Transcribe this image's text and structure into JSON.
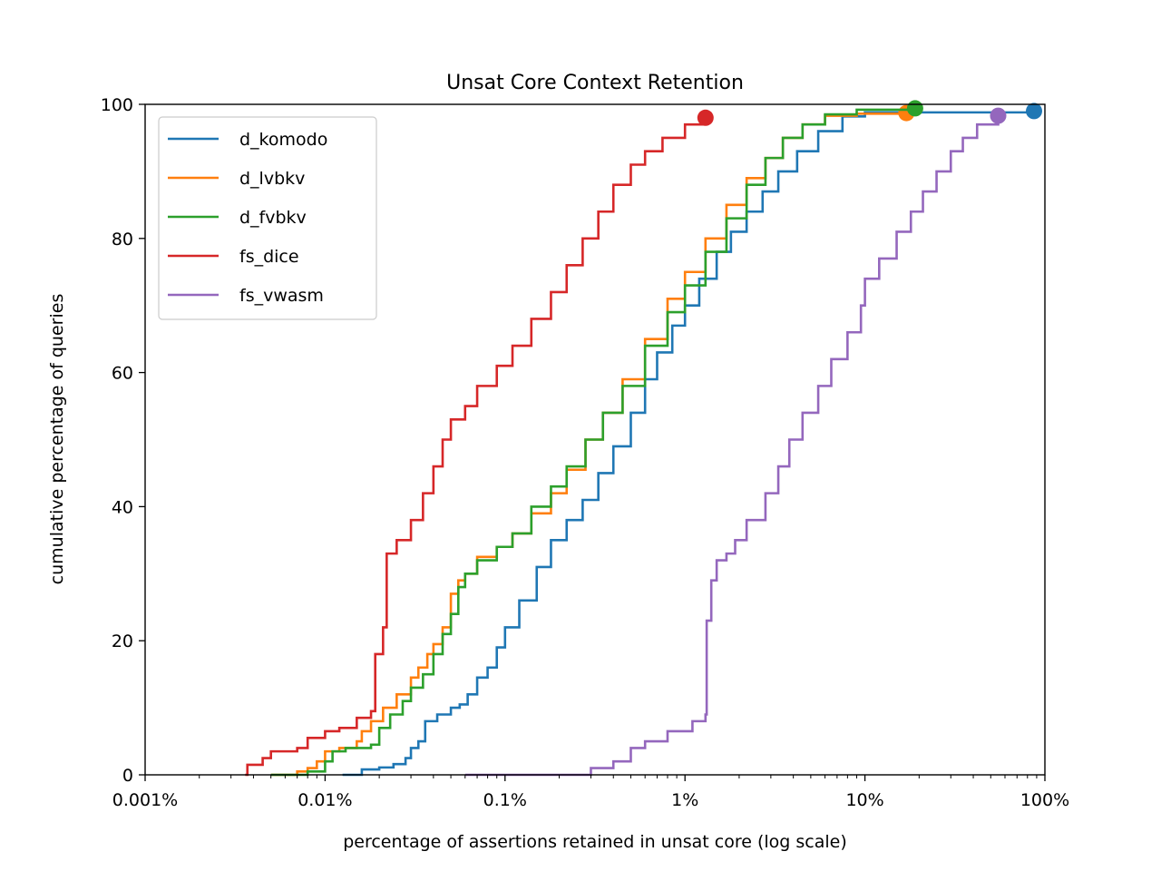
{
  "chart_data": {
    "type": "line",
    "title": "Unsat Core Context Retention",
    "xlabel": "percentage of assertions retained in unsat core (log scale)",
    "ylabel": "cumulative percentage of queries",
    "xscale": "log",
    "xlim": [
      0.001,
      100
    ],
    "ylim": [
      0,
      100
    ],
    "x_ticks": [
      {
        "value": 0.001,
        "label": "0.001%"
      },
      {
        "value": 0.01,
        "label": "0.01%"
      },
      {
        "value": 0.1,
        "label": "0.1%"
      },
      {
        "value": 1,
        "label": "1%"
      },
      {
        "value": 10,
        "label": "10%"
      },
      {
        "value": 100,
        "label": "100%"
      }
    ],
    "y_ticks": [
      0,
      20,
      40,
      60,
      80,
      100
    ],
    "grid": false,
    "legend_position": "top-left",
    "series": [
      {
        "name": "d_komodo",
        "color": "#1f77b4",
        "end_marker": true,
        "points": [
          [
            0.0125,
            0
          ],
          [
            0.016,
            0.8
          ],
          [
            0.02,
            1.1
          ],
          [
            0.024,
            1.6
          ],
          [
            0.028,
            2.5
          ],
          [
            0.03,
            4
          ],
          [
            0.033,
            5
          ],
          [
            0.036,
            8
          ],
          [
            0.042,
            9
          ],
          [
            0.05,
            10
          ],
          [
            0.056,
            10.5
          ],
          [
            0.062,
            12
          ],
          [
            0.07,
            14.5
          ],
          [
            0.08,
            16
          ],
          [
            0.09,
            19
          ],
          [
            0.1,
            22
          ],
          [
            0.12,
            26
          ],
          [
            0.15,
            31
          ],
          [
            0.18,
            35
          ],
          [
            0.22,
            38
          ],
          [
            0.27,
            41
          ],
          [
            0.33,
            45
          ],
          [
            0.4,
            49
          ],
          [
            0.5,
            54
          ],
          [
            0.6,
            59
          ],
          [
            0.7,
            63
          ],
          [
            0.85,
            67
          ],
          [
            1.0,
            70
          ],
          [
            1.2,
            74
          ],
          [
            1.5,
            78
          ],
          [
            1.8,
            81
          ],
          [
            2.2,
            84
          ],
          [
            2.7,
            87
          ],
          [
            3.3,
            90
          ],
          [
            4.2,
            93
          ],
          [
            5.5,
            96
          ],
          [
            7.5,
            98.2
          ],
          [
            10,
            98.8
          ],
          [
            20,
            98.8
          ],
          [
            50,
            98.8
          ],
          [
            87,
            99
          ]
        ]
      },
      {
        "name": "d_lvbkv",
        "color": "#ff7f0e",
        "end_marker": true,
        "points": [
          [
            0.005,
            0
          ],
          [
            0.007,
            0.5
          ],
          [
            0.008,
            1
          ],
          [
            0.009,
            2
          ],
          [
            0.01,
            3.5
          ],
          [
            0.012,
            4
          ],
          [
            0.015,
            5
          ],
          [
            0.016,
            6.5
          ],
          [
            0.018,
            8
          ],
          [
            0.021,
            10
          ],
          [
            0.025,
            12
          ],
          [
            0.03,
            14.5
          ],
          [
            0.033,
            16
          ],
          [
            0.037,
            18
          ],
          [
            0.04,
            19.5
          ],
          [
            0.045,
            22
          ],
          [
            0.05,
            27
          ],
          [
            0.055,
            29
          ],
          [
            0.06,
            30
          ],
          [
            0.07,
            32.5
          ],
          [
            0.09,
            34
          ],
          [
            0.11,
            36
          ],
          [
            0.14,
            39
          ],
          [
            0.18,
            42
          ],
          [
            0.22,
            45.5
          ],
          [
            0.28,
            50
          ],
          [
            0.35,
            54
          ],
          [
            0.45,
            59
          ],
          [
            0.6,
            65
          ],
          [
            0.8,
            71
          ],
          [
            1.0,
            75
          ],
          [
            1.3,
            80
          ],
          [
            1.7,
            85
          ],
          [
            2.2,
            89
          ],
          [
            2.8,
            92
          ],
          [
            3.5,
            95
          ],
          [
            4.5,
            97
          ],
          [
            6,
            98.3
          ],
          [
            9,
            98.6
          ],
          [
            17,
            98.7
          ]
        ]
      },
      {
        "name": "d_fvbkv",
        "color": "#2ca02c",
        "end_marker": true,
        "points": [
          [
            0.005,
            0
          ],
          [
            0.008,
            0.5
          ],
          [
            0.01,
            2
          ],
          [
            0.011,
            3.5
          ],
          [
            0.013,
            4
          ],
          [
            0.018,
            4.5
          ],
          [
            0.02,
            7
          ],
          [
            0.023,
            9
          ],
          [
            0.027,
            11
          ],
          [
            0.03,
            13
          ],
          [
            0.035,
            15
          ],
          [
            0.04,
            18
          ],
          [
            0.045,
            21
          ],
          [
            0.05,
            24
          ],
          [
            0.055,
            28
          ],
          [
            0.06,
            30
          ],
          [
            0.07,
            32
          ],
          [
            0.09,
            34
          ],
          [
            0.11,
            36
          ],
          [
            0.14,
            40
          ],
          [
            0.18,
            43
          ],
          [
            0.22,
            46
          ],
          [
            0.28,
            50
          ],
          [
            0.35,
            54
          ],
          [
            0.45,
            58
          ],
          [
            0.6,
            64
          ],
          [
            0.8,
            69
          ],
          [
            1.0,
            73
          ],
          [
            1.3,
            78
          ],
          [
            1.7,
            83
          ],
          [
            2.2,
            88
          ],
          [
            2.8,
            92
          ],
          [
            3.5,
            95
          ],
          [
            4.5,
            97
          ],
          [
            6,
            98.5
          ],
          [
            9,
            99.2
          ],
          [
            19,
            99.4
          ]
        ]
      },
      {
        "name": "fs_dice",
        "color": "#d62728",
        "end_marker": true,
        "points": [
          [
            0.0036,
            0
          ],
          [
            0.0037,
            1.5
          ],
          [
            0.0045,
            2.5
          ],
          [
            0.005,
            3.5
          ],
          [
            0.007,
            4
          ],
          [
            0.008,
            5.5
          ],
          [
            0.01,
            6.5
          ],
          [
            0.012,
            7
          ],
          [
            0.015,
            8.5
          ],
          [
            0.018,
            9.5
          ],
          [
            0.019,
            18
          ],
          [
            0.021,
            22
          ],
          [
            0.022,
            33
          ],
          [
            0.025,
            35
          ],
          [
            0.03,
            38
          ],
          [
            0.035,
            42
          ],
          [
            0.04,
            46
          ],
          [
            0.045,
            50
          ],
          [
            0.05,
            53
          ],
          [
            0.06,
            55
          ],
          [
            0.07,
            58
          ],
          [
            0.09,
            61
          ],
          [
            0.11,
            64
          ],
          [
            0.14,
            68
          ],
          [
            0.18,
            72
          ],
          [
            0.22,
            76
          ],
          [
            0.27,
            80
          ],
          [
            0.33,
            84
          ],
          [
            0.4,
            88
          ],
          [
            0.5,
            91
          ],
          [
            0.6,
            93
          ],
          [
            0.75,
            95
          ],
          [
            1.0,
            97
          ],
          [
            1.3,
            98
          ]
        ]
      },
      {
        "name": "fs_vwasm",
        "color": "#9467bd",
        "end_marker": true,
        "points": [
          [
            0.06,
            0
          ],
          [
            0.3,
            1
          ],
          [
            0.4,
            2
          ],
          [
            0.5,
            4
          ],
          [
            0.6,
            5
          ],
          [
            0.8,
            6.5
          ],
          [
            1.1,
            8
          ],
          [
            1.3,
            9
          ],
          [
            1.32,
            23
          ],
          [
            1.4,
            29
          ],
          [
            1.5,
            32
          ],
          [
            1.7,
            33
          ],
          [
            1.9,
            35
          ],
          [
            2.2,
            38
          ],
          [
            2.8,
            42
          ],
          [
            3.3,
            46
          ],
          [
            3.8,
            50
          ],
          [
            4.5,
            54
          ],
          [
            5.5,
            58
          ],
          [
            6.5,
            62
          ],
          [
            8,
            66
          ],
          [
            9.5,
            70
          ],
          [
            10,
            74
          ],
          [
            12,
            77
          ],
          [
            15,
            81
          ],
          [
            18,
            84
          ],
          [
            21,
            87
          ],
          [
            25,
            90
          ],
          [
            30,
            93
          ],
          [
            35,
            95
          ],
          [
            42,
            97
          ],
          [
            55,
            98.3
          ]
        ]
      }
    ]
  }
}
